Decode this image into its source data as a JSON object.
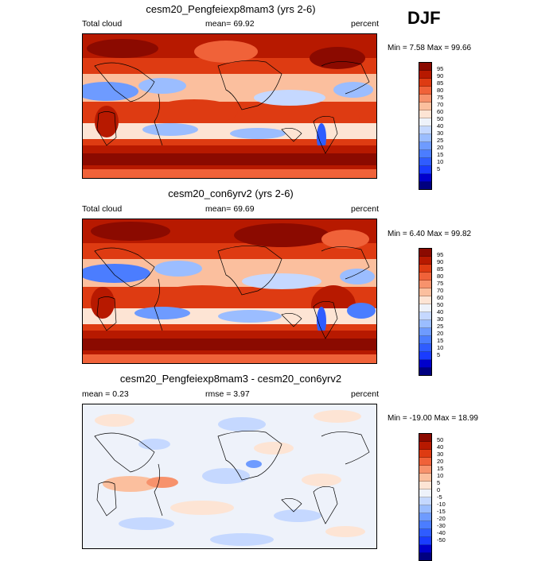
{
  "season": "DJF",
  "panels": [
    {
      "title": "cesm20_Pengfeiexp8mam3 (yrs 2-6)",
      "left_label": "Total cloud",
      "center_label": "mean=  69.92",
      "right_label": "percent",
      "minmax": "Min =   7.58 Max =  99.66",
      "colorbar_labels": [
        "95",
        "90",
        "85",
        "80",
        "75",
        "70",
        "60",
        "50",
        "40",
        "30",
        "25",
        "20",
        "15",
        "10",
        "5"
      ]
    },
    {
      "title": "cesm20_con6yrv2 (yrs 2-6)",
      "left_label": "Total cloud",
      "center_label": "mean=  69.69",
      "right_label": "percent",
      "minmax": "Min =   6.40 Max =  99.82",
      "colorbar_labels": [
        "95",
        "90",
        "85",
        "80",
        "75",
        "70",
        "60",
        "50",
        "40",
        "30",
        "25",
        "20",
        "15",
        "10",
        "5"
      ]
    },
    {
      "title": "cesm20_Pengfeiexp8mam3 - cesm20_con6yrv2",
      "left_label": "mean =   0.23",
      "center_label": "rmse =  3.97",
      "right_label": "percent",
      "minmax": "Min = -19.00 Max =  18.99",
      "colorbar_labels": [
        "50",
        "40",
        "30",
        "20",
        "15",
        "10",
        "5",
        "0",
        "-5",
        "-10",
        "-15",
        "-20",
        "-30",
        "-40",
        "-50"
      ]
    }
  ],
  "chart_data": [
    {
      "type": "heatmap",
      "title": "cesm20_Pengfeiexp8mam3 (yrs 2-6)",
      "variable": "Total cloud",
      "units": "percent",
      "season": "DJF",
      "mean": 69.92,
      "min": 7.58,
      "max": 99.66,
      "contour_levels": [
        5,
        10,
        15,
        20,
        25,
        30,
        40,
        50,
        60,
        70,
        75,
        80,
        85,
        90,
        95
      ],
      "colormap": [
        "#000080",
        "#0000cc",
        "#1a3cff",
        "#2f5cff",
        "#4b7dff",
        "#6e9bff",
        "#9bbdff",
        "#c5d8ff",
        "#eef2fa",
        "#fde4d4",
        "#fbbf9e",
        "#f7926c",
        "#f06239",
        "#de3b12",
        "#b71900",
        "#8b0a00"
      ]
    },
    {
      "type": "heatmap",
      "title": "cesm20_con6yrv2 (yrs 2-6)",
      "variable": "Total cloud",
      "units": "percent",
      "season": "DJF",
      "mean": 69.69,
      "min": 6.4,
      "max": 99.82,
      "contour_levels": [
        5,
        10,
        15,
        20,
        25,
        30,
        40,
        50,
        60,
        70,
        75,
        80,
        85,
        90,
        95
      ],
      "colormap": [
        "#000080",
        "#0000cc",
        "#1a3cff",
        "#2f5cff",
        "#4b7dff",
        "#6e9bff",
        "#9bbdff",
        "#c5d8ff",
        "#eef2fa",
        "#fde4d4",
        "#fbbf9e",
        "#f7926c",
        "#f06239",
        "#de3b12",
        "#b71900",
        "#8b0a00"
      ]
    },
    {
      "type": "heatmap",
      "title": "cesm20_Pengfeiexp8mam3 - cesm20_con6yrv2",
      "variable": "Total cloud",
      "units": "percent",
      "season": "DJF",
      "mean": 0.23,
      "rmse": 3.97,
      "min": -19.0,
      "max": 18.99,
      "contour_levels": [
        -50,
        -40,
        -30,
        -20,
        -15,
        -10,
        -5,
        0,
        5,
        10,
        15,
        20,
        30,
        40,
        50
      ],
      "colormap": [
        "#000080",
        "#0000cc",
        "#1a3cff",
        "#2f5cff",
        "#4b7dff",
        "#6e9bff",
        "#9bbdff",
        "#c5d8ff",
        "#eef2fa",
        "#fde4d4",
        "#fbbf9e",
        "#f7926c",
        "#f06239",
        "#de3b12",
        "#b71900",
        "#8b0a00"
      ]
    }
  ]
}
